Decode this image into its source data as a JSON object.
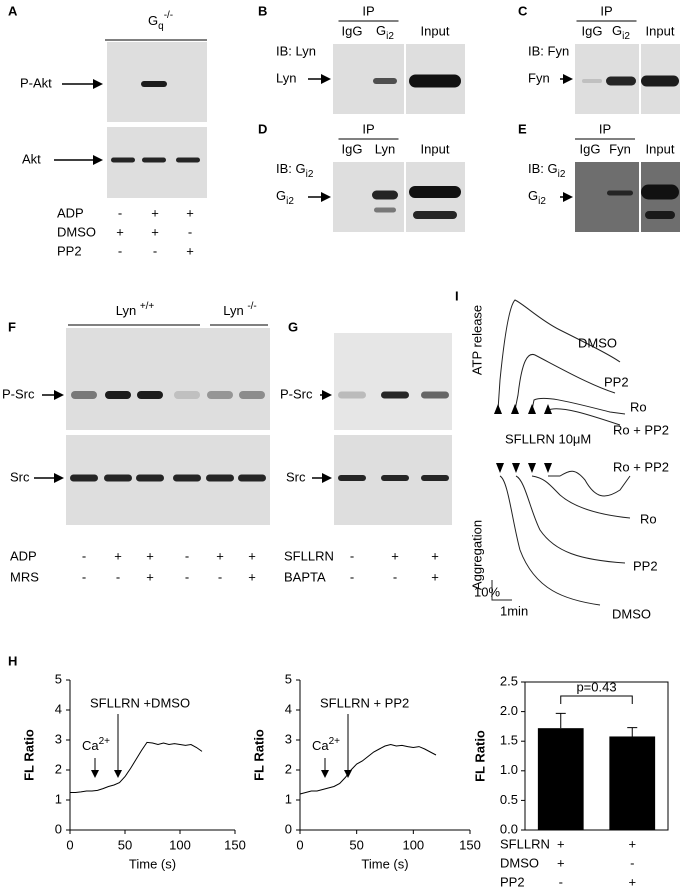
{
  "panels": {
    "A": {
      "label": "A",
      "genotype": {
        "base": "G",
        "sub": "q",
        "sup": "-/-"
      },
      "rows": [
        "P-Akt",
        "Akt"
      ],
      "treatments": [
        {
          "name": "ADP",
          "signs": [
            "-",
            "+",
            "+"
          ]
        },
        {
          "name": "DMSO",
          "signs": [
            "+",
            "+",
            "-"
          ]
        },
        {
          "name": "PP2",
          "signs": [
            "-",
            "-",
            "+"
          ]
        }
      ]
    },
    "B": {
      "label": "B",
      "ip": "IP",
      "lanes": [
        "IgG",
        {
          "base": "G",
          "sub": "i2"
        }
      ],
      "input": "Input",
      "ib": "IB: Lyn",
      "band": "Lyn"
    },
    "C": {
      "label": "C",
      "ip": "IP",
      "lanes": [
        "IgG",
        {
          "base": "G",
          "sub": "i2"
        }
      ],
      "input": "Input",
      "ib": "IB: Fyn",
      "band": "Fyn"
    },
    "D": {
      "label": "D",
      "ip": "IP",
      "lanes": [
        "IgG",
        "Lyn"
      ],
      "input": "Input",
      "ib": {
        "base": "IB: G",
        "sub": "i2"
      },
      "band": {
        "base": "G",
        "sub": "i2"
      }
    },
    "E": {
      "label": "E",
      "ip": "IP",
      "lanes": [
        "IgG",
        "Fyn"
      ],
      "input": "Input",
      "ib": {
        "base": "IB: G",
        "sub": "i2"
      },
      "band": {
        "base": "G",
        "sub": "i2"
      }
    },
    "F": {
      "label": "F",
      "groups": [
        {
          "base": "Lyn ",
          "sup": "+/+"
        },
        {
          "base": "Lyn ",
          "sup": "-/-"
        }
      ],
      "rows": [
        "P-Src",
        "Src"
      ],
      "treatments": [
        {
          "name": "ADP",
          "signs": [
            "-",
            "+",
            "+",
            "-",
            "+",
            "+"
          ]
        },
        {
          "name": "MRS",
          "signs": [
            "-",
            "-",
            "+",
            "-",
            "-",
            "+"
          ]
        }
      ]
    },
    "G": {
      "label": "G",
      "rows": [
        "P-Src",
        "Src"
      ],
      "treatments": [
        {
          "name": "SFLLRN",
          "signs": [
            "-",
            "+",
            "+"
          ]
        },
        {
          "name": "BAPTA",
          "signs": [
            "-",
            "-",
            "+"
          ]
        }
      ]
    },
    "H": {
      "label": "H"
    },
    "I": {
      "label": "I",
      "release_label": "ATP release",
      "release_traces": [
        "DMSO",
        "PP2",
        "Ro",
        "Ro + PP2"
      ],
      "agonist": "SFLLRN 10μM",
      "aggregation_label": "Aggregation",
      "aggregation_traces": [
        "Ro + PP2",
        "Ro",
        "PP2",
        "DMSO"
      ],
      "scale_y": "10%",
      "scale_x": "1min"
    }
  },
  "chart_data": [
    {
      "type": "line",
      "ylabel": "FL Ratio",
      "xlabel": "Time (s)",
      "annotation": "SFLLRN +DMSO",
      "marker": {
        "base": "Ca",
        "sup": "2+"
      },
      "x": [
        0,
        5,
        10,
        15,
        20,
        25,
        30,
        35,
        40,
        45,
        50,
        55,
        60,
        65,
        70,
        75,
        80,
        85,
        90,
        95,
        100,
        105,
        110,
        115,
        120
      ],
      "values": [
        1.25,
        1.25,
        1.27,
        1.3,
        1.3,
        1.32,
        1.38,
        1.45,
        1.5,
        1.58,
        1.78,
        2.05,
        2.35,
        2.65,
        2.92,
        2.9,
        2.85,
        2.9,
        2.85,
        2.88,
        2.85,
        2.82,
        2.85,
        2.75,
        2.62
      ],
      "color": "#000000",
      "xlim": [
        0,
        150
      ],
      "xticks": [
        0,
        50,
        100,
        150
      ],
      "ylim": [
        0,
        5
      ],
      "yticks": [
        0,
        1,
        2,
        3,
        4,
        5
      ]
    },
    {
      "type": "line",
      "ylabel": "FL Ratio",
      "xlabel": "Time (s)",
      "annotation": "SFLLRN + PP2",
      "marker": {
        "base": "Ca",
        "sup": "2+"
      },
      "x": [
        0,
        5,
        10,
        15,
        20,
        25,
        30,
        35,
        40,
        45,
        50,
        55,
        60,
        65,
        70,
        75,
        80,
        85,
        90,
        95,
        100,
        105,
        110,
        115,
        120
      ],
      "values": [
        1.2,
        1.25,
        1.3,
        1.3,
        1.35,
        1.4,
        1.45,
        1.55,
        1.75,
        2.0,
        2.2,
        2.3,
        2.45,
        2.6,
        2.7,
        2.8,
        2.85,
        2.8,
        2.82,
        2.78,
        2.75,
        2.78,
        2.7,
        2.6,
        2.5
      ],
      "color": "#000000",
      "xlim": [
        0,
        150
      ],
      "xticks": [
        0,
        50,
        100,
        150
      ],
      "ylim": [
        0,
        5
      ],
      "yticks": [
        0,
        1,
        2,
        3,
        4,
        5
      ]
    },
    {
      "type": "bar",
      "ylabel": "FL Ratio",
      "annotation": "p=0.43",
      "categories": [
        null,
        null
      ],
      "values": [
        1.72,
        1.58
      ],
      "errors": [
        0.25,
        0.15
      ],
      "color": "#000000",
      "ylim": [
        0,
        2.5
      ],
      "yticks": [
        {
          "value": 0,
          "label": "0.0"
        },
        0.5,
        {
          "value": 1,
          "label": "1.0"
        },
        1.5,
        {
          "value": 2,
          "label": "2.0"
        },
        2.5
      ],
      "treatments": [
        {
          "name": "SFLLRN",
          "signs": [
            "+",
            "+"
          ]
        },
        {
          "name": "DMSO",
          "signs": [
            "+",
            "-"
          ]
        },
        {
          "name": "PP2",
          "signs": [
            "-",
            "+"
          ]
        }
      ]
    }
  ]
}
